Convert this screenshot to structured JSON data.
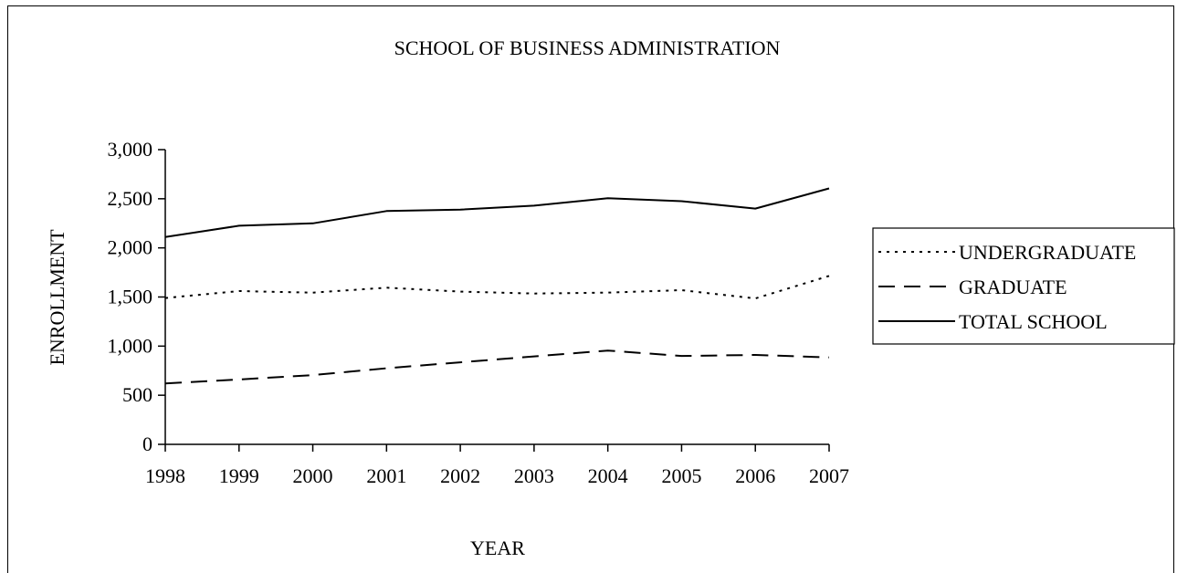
{
  "chart_data": {
    "type": "line",
    "title": "SCHOOL OF BUSINESS ADMINISTRATION",
    "xlabel": "YEAR",
    "ylabel": "ENROLLMENT",
    "x": [
      "1998",
      "1999",
      "2000",
      "2001",
      "2002",
      "2003",
      "2004",
      "2005",
      "2006",
      "2007"
    ],
    "ylim": [
      0,
      3000
    ],
    "yticks": [
      0,
      500,
      1000,
      1500,
      2000,
      2500,
      3000
    ],
    "ytick_labels": [
      "0",
      "500",
      "1,000",
      "1,500",
      "2,000",
      "2,500",
      "3,000"
    ],
    "grid": false,
    "legend_position": "right",
    "series": [
      {
        "name": "UNDERGRADUATE",
        "style": "dotted",
        "color": "#000000",
        "values": [
          1490,
          1560,
          1545,
          1595,
          1555,
          1535,
          1545,
          1570,
          1485,
          1715
        ]
      },
      {
        "name": "GRADUATE",
        "style": "dashed",
        "color": "#000000",
        "values": [
          620,
          660,
          705,
          775,
          835,
          895,
          955,
          900,
          910,
          885
        ]
      },
      {
        "name": "TOTAL SCHOOL",
        "style": "solid",
        "color": "#000000",
        "values": [
          2110,
          2225,
          2250,
          2375,
          2390,
          2430,
          2505,
          2475,
          2400,
          2605
        ]
      }
    ]
  }
}
